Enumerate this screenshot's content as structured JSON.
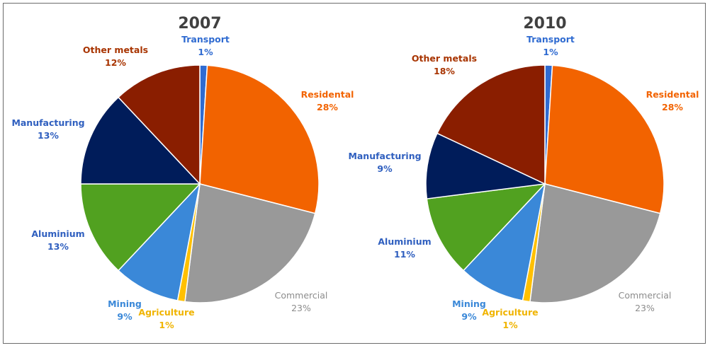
{
  "chart_data": [
    {
      "type": "pie",
      "title": "2007",
      "slices": [
        {
          "label": "Transport",
          "value": 1,
          "value_label": "1%",
          "color": "#2f6bd1",
          "label_color": "#2f6bd1",
          "bold": true
        },
        {
          "label": "Residental",
          "value": 28,
          "value_label": "28%",
          "color": "#f26300",
          "label_color": "#f26300",
          "bold": true
        },
        {
          "label": "Commercial",
          "value": 23,
          "value_label": "23%",
          "color": "#999999",
          "label_color": "#8c8c8c",
          "bold": false
        },
        {
          "label": "Agriculture",
          "value": 1,
          "value_label": "1%",
          "color": "#ffc000",
          "label_color": "#f0b400",
          "bold": true
        },
        {
          "label": "Mining",
          "value": 9,
          "value_label": "9%",
          "color": "#3a88d8",
          "label_color": "#3a88d8",
          "bold": true
        },
        {
          "label": "Aluminium",
          "value": 13,
          "value_label": "13%",
          "color": "#51a120",
          "label_color": "#2f5fbf",
          "bold": true
        },
        {
          "label": "Manufacturing",
          "value": 13,
          "value_label": "13%",
          "color": "#001c5a",
          "label_color": "#2f5fbf",
          "bold": true
        },
        {
          "label": "Other metals",
          "value": 12,
          "value_label": "12%",
          "color": "#8a1e00",
          "label_color": "#a83400",
          "bold": true
        }
      ]
    },
    {
      "type": "pie",
      "title": "2010",
      "slices": [
        {
          "label": "Transport",
          "value": 1,
          "value_label": "1%",
          "color": "#2f6bd1",
          "label_color": "#2f6bd1",
          "bold": true
        },
        {
          "label": "Residental",
          "value": 28,
          "value_label": "28%",
          "color": "#f26300",
          "label_color": "#f26300",
          "bold": true
        },
        {
          "label": "Commercial",
          "value": 23,
          "value_label": "23%",
          "color": "#999999",
          "label_color": "#8c8c8c",
          "bold": false
        },
        {
          "label": "Agriculture",
          "value": 1,
          "value_label": "1%",
          "color": "#ffc000",
          "label_color": "#f0b400",
          "bold": true
        },
        {
          "label": "Mining",
          "value": 9,
          "value_label": "9%",
          "color": "#3a88d8",
          "label_color": "#3a88d8",
          "bold": true
        },
        {
          "label": "Aluminium",
          "value": 11,
          "value_label": "11%",
          "color": "#51a120",
          "label_color": "#2f5fbf",
          "bold": true
        },
        {
          "label": "Manufacturing",
          "value": 9,
          "value_label": "9%",
          "color": "#001c5a",
          "label_color": "#2f5fbf",
          "bold": true
        },
        {
          "label": "Other metals",
          "value": 18,
          "value_label": "18%",
          "color": "#8a1e00",
          "label_color": "#a83400",
          "bold": true
        }
      ]
    }
  ]
}
